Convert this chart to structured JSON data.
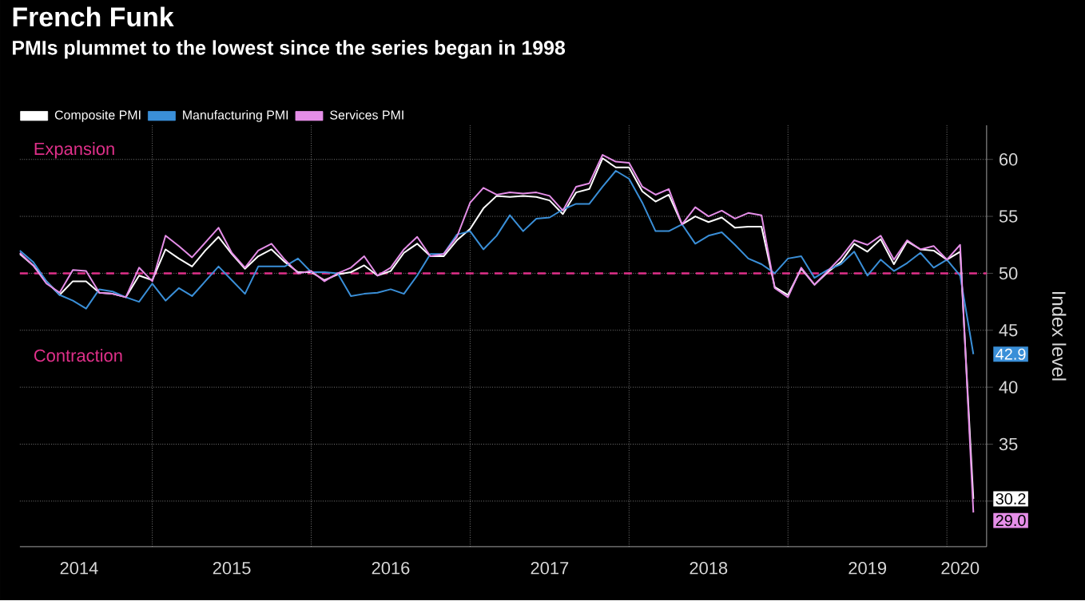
{
  "chart_data": {
    "type": "line",
    "title": "French Funk",
    "subtitle": "PMIs plummet to the lowest since the series began in 1998",
    "ylabel": "Index level",
    "x": [
      "2014-03",
      "2014-04",
      "2014-05",
      "2014-06",
      "2014-07",
      "2014-08",
      "2014-09",
      "2014-10",
      "2014-11",
      "2014-12",
      "2015-01",
      "2015-02",
      "2015-03",
      "2015-04",
      "2015-05",
      "2015-06",
      "2015-07",
      "2015-08",
      "2015-09",
      "2015-10",
      "2015-11",
      "2015-12",
      "2016-01",
      "2016-02",
      "2016-03",
      "2016-04",
      "2016-05",
      "2016-06",
      "2016-07",
      "2016-08",
      "2016-09",
      "2016-10",
      "2016-11",
      "2016-12",
      "2017-01",
      "2017-02",
      "2017-03",
      "2017-04",
      "2017-05",
      "2017-06",
      "2017-07",
      "2017-08",
      "2017-09",
      "2017-10",
      "2017-11",
      "2017-12",
      "2018-01",
      "2018-02",
      "2018-03",
      "2018-04",
      "2018-05",
      "2018-06",
      "2018-07",
      "2018-08",
      "2018-09",
      "2018-10",
      "2018-11",
      "2018-12",
      "2019-01",
      "2019-02",
      "2019-03",
      "2019-04",
      "2019-05",
      "2019-06",
      "2019-07",
      "2019-08",
      "2019-09",
      "2019-10",
      "2019-11",
      "2019-12",
      "2020-01",
      "2020-02",
      "2020-03"
    ],
    "series": [
      {
        "name": "Composite PMI",
        "color": "#ffffff",
        "values": [
          51.7,
          50.7,
          49.3,
          48.1,
          49.3,
          49.3,
          48.3,
          48.2,
          47.9,
          49.8,
          49.4,
          52.1,
          51.3,
          50.6,
          52.0,
          53.2,
          51.7,
          50.4,
          51.5,
          52.1,
          51.0,
          50.1,
          50.1,
          49.4,
          49.9,
          50.1,
          50.7,
          49.8,
          50.2,
          51.8,
          52.6,
          51.5,
          51.5,
          52.9,
          53.9,
          55.7,
          56.8,
          56.7,
          56.8,
          56.7,
          56.4,
          55.2,
          57.1,
          57.4,
          60.1,
          59.3,
          59.3,
          57.2,
          56.3,
          56.9,
          54.3,
          55.0,
          54.5,
          54.9,
          54.0,
          54.1,
          54.1,
          48.8,
          48.1,
          50.4,
          49.0,
          50.1,
          51.0,
          52.6,
          51.9,
          53.0,
          50.8,
          52.8,
          52.1,
          52.0,
          51.2,
          51.9,
          30.2
        ]
      },
      {
        "name": "Manufacturing PMI",
        "color": "#3a8fd8",
        "values": [
          52.0,
          51.0,
          49.3,
          48.1,
          47.6,
          46.9,
          48.6,
          48.4,
          47.9,
          47.5,
          49.1,
          47.6,
          48.7,
          48.0,
          49.3,
          50.6,
          49.4,
          48.2,
          50.6,
          50.6,
          50.6,
          51.3,
          50.1,
          50.1,
          50.0,
          48.0,
          48.2,
          48.3,
          48.6,
          48.2,
          49.8,
          51.7,
          51.7,
          53.4,
          53.7,
          52.1,
          53.3,
          55.1,
          53.7,
          54.8,
          54.9,
          55.6,
          56.1,
          56.1,
          57.6,
          59.0,
          58.3,
          56.2,
          53.7,
          53.7,
          54.3,
          52.6,
          53.3,
          53.6,
          52.5,
          51.3,
          50.8,
          50.0,
          51.3,
          51.5,
          49.6,
          50.3,
          50.8,
          51.9,
          49.8,
          51.2,
          50.2,
          50.9,
          51.8,
          50.5,
          51.2,
          49.8,
          42.9
        ]
      },
      {
        "name": "Services PMI",
        "color": "#e58ee8",
        "values": [
          51.8,
          50.7,
          49.1,
          48.3,
          50.3,
          50.2,
          48.3,
          48.2,
          47.9,
          50.5,
          49.3,
          53.3,
          52.4,
          51.4,
          52.7,
          54.0,
          51.8,
          50.5,
          52.0,
          52.6,
          51.2,
          50.0,
          50.2,
          49.3,
          50.0,
          50.5,
          51.5,
          49.8,
          50.5,
          52.1,
          53.2,
          51.5,
          51.7,
          53.2,
          56.2,
          57.5,
          56.9,
          57.1,
          57.0,
          57.1,
          56.8,
          55.5,
          57.6,
          57.9,
          60.4,
          59.8,
          59.7,
          57.6,
          56.9,
          57.4,
          54.3,
          55.8,
          55.0,
          55.5,
          54.8,
          55.3,
          55.1,
          48.7,
          47.9,
          50.5,
          49.0,
          50.2,
          51.4,
          52.9,
          52.5,
          53.3,
          51.2,
          52.9,
          52.1,
          52.4,
          51.2,
          52.5,
          29.0
        ]
      }
    ],
    "xlim": [
      "2014-03",
      "2020-04"
    ],
    "xticks": [
      {
        "value": "2014-07-15",
        "label": "2014"
      },
      {
        "value": "2015-01",
        "label": null
      },
      {
        "value": "2015-07",
        "label": "2015"
      },
      {
        "value": "2016-01",
        "label": null
      },
      {
        "value": "2016-07",
        "label": "2016"
      },
      {
        "value": "2017-01",
        "label": null
      },
      {
        "value": "2017-07",
        "label": "2017"
      },
      {
        "value": "2018-01",
        "label": null
      },
      {
        "value": "2018-07",
        "label": "2018"
      },
      {
        "value": "2019-01",
        "label": null
      },
      {
        "value": "2019-07",
        "label": "2019"
      },
      {
        "value": "2020-01",
        "label": null
      },
      {
        "value": "2020-02",
        "label": "2020"
      }
    ],
    "ylim": [
      26,
      63
    ],
    "yticks": [
      {
        "value": 30,
        "label": null
      },
      35,
      40,
      45,
      50,
      55,
      60
    ],
    "grid": true,
    "legend": "top left",
    "marker": "none",
    "line_style": "solid",
    "ref_lines": [
      {
        "axis": "y",
        "value": 50,
        "color": "#e0308a",
        "line_style": "dashed"
      }
    ],
    "annotations": [
      "Expansion",
      "Contraction",
      {
        "text": "42.9",
        "x": "2020-03",
        "y": 42.9
      },
      {
        "text": "30.2",
        "x": "2020-03",
        "y": 30.2
      },
      {
        "text": "29.0",
        "x": "2020-03",
        "y": 29.0
      }
    ]
  }
}
